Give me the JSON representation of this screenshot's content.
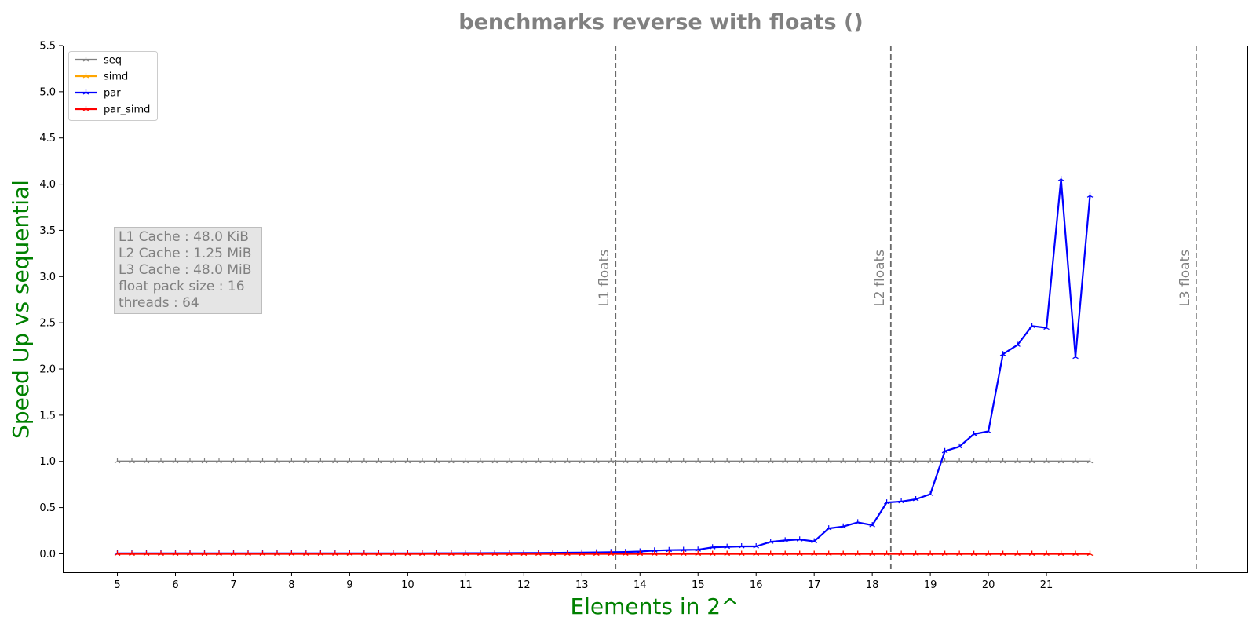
{
  "chart_data": {
    "type": "line",
    "title": "benchmarks reverse with floats  ()",
    "xlabel": "Elements in 2^",
    "ylabel": "Speed Up vs sequential",
    "xlim": [
      4.06,
      24.46
    ],
    "ylim": [
      -0.2,
      5.5
    ],
    "xticks": [
      5,
      6,
      7,
      8,
      9,
      10,
      11,
      12,
      13,
      14,
      15,
      16,
      17,
      18,
      19,
      20,
      21
    ],
    "yticks": [
      0.0,
      0.5,
      1.0,
      1.5,
      2.0,
      2.5,
      3.0,
      3.5,
      4.0,
      4.5,
      5.0,
      5.5
    ],
    "grid": false,
    "legend_position": "top-left",
    "x": [
      5,
      5.25,
      5.5,
      5.75,
      6,
      6.25,
      6.5,
      6.75,
      7,
      7.25,
      7.5,
      7.75,
      8,
      8.25,
      8.5,
      8.75,
      9,
      9.25,
      9.5,
      9.75,
      10,
      10.25,
      10.5,
      10.75,
      11,
      11.25,
      11.5,
      11.75,
      12,
      12.25,
      12.5,
      12.75,
      13,
      13.25,
      13.5,
      13.75,
      14,
      14.25,
      14.5,
      14.75,
      15,
      15.25,
      15.5,
      15.75,
      16,
      16.25,
      16.5,
      16.75,
      17,
      17.25,
      17.5,
      17.75,
      18,
      18.25,
      18.5,
      18.75,
      19,
      19.25,
      19.5,
      19.75,
      20,
      20.25,
      20.5,
      20.75,
      21,
      21.25,
      21.5,
      21.75
    ],
    "series": [
      {
        "name": "seq",
        "color": "#808080",
        "values": [
          1,
          1,
          1,
          1,
          1,
          1,
          1,
          1,
          1,
          1,
          1,
          1,
          1,
          1,
          1,
          1,
          1,
          1,
          1,
          1,
          1,
          1,
          1,
          1,
          1,
          1,
          1,
          1,
          1,
          1,
          1,
          1,
          1,
          1,
          1,
          1,
          1,
          1,
          1,
          1,
          1,
          1,
          1,
          1,
          1,
          1,
          1,
          1,
          1,
          1,
          1,
          1,
          1,
          1,
          1,
          1,
          1,
          1,
          1,
          1,
          1,
          1,
          1,
          1,
          1,
          1,
          1,
          1
        ]
      },
      {
        "name": "simd",
        "color": "#ffa500",
        "values": [
          0,
          0,
          0,
          0,
          0,
          0,
          0,
          0,
          0,
          0,
          0,
          0,
          0,
          0,
          0,
          0,
          0,
          0,
          0,
          0,
          0,
          0,
          0,
          0,
          0,
          0,
          0,
          0,
          0,
          0,
          0,
          0,
          0,
          0,
          0,
          0,
          0,
          0,
          0,
          0,
          0,
          0,
          0,
          0,
          0,
          0,
          0,
          0,
          0,
          0,
          0,
          0,
          0,
          0,
          0,
          0,
          0,
          0,
          0,
          0,
          0,
          0,
          0,
          0,
          0,
          0,
          0,
          0
        ]
      },
      {
        "name": "par",
        "color": "#0000ff",
        "values": [
          0.005,
          0.005,
          0.005,
          0.005,
          0.005,
          0.005,
          0.005,
          0.005,
          0.005,
          0.005,
          0.005,
          0.005,
          0.005,
          0.005,
          0.005,
          0.005,
          0.005,
          0.005,
          0.005,
          0.005,
          0.005,
          0.005,
          0.006,
          0.006,
          0.007,
          0.007,
          0.008,
          0.008,
          0.009,
          0.01,
          0.011,
          0.012,
          0.014,
          0.016,
          0.018,
          0.02,
          0.025,
          0.035,
          0.04,
          0.042,
          0.045,
          0.07,
          0.075,
          0.08,
          0.08,
          0.13,
          0.145,
          0.155,
          0.135,
          0.275,
          0.295,
          0.34,
          0.31,
          0.555,
          0.565,
          0.59,
          0.645,
          1.11,
          1.16,
          1.295,
          1.325,
          2.16,
          2.26,
          2.465,
          2.445,
          4.055,
          2.13,
          3.875
        ]
      },
      {
        "name": "par_simd",
        "color": "#ff0000",
        "values": [
          0,
          0,
          0,
          0,
          0,
          0,
          0,
          0,
          0,
          0,
          0,
          0,
          0,
          0,
          0,
          0,
          0,
          0,
          0,
          0,
          0,
          0,
          0,
          0,
          0,
          0,
          0,
          0,
          0,
          0,
          0,
          0,
          0,
          0,
          0,
          0,
          0,
          0,
          0,
          0,
          0,
          0,
          0,
          0,
          0,
          0,
          0,
          0,
          0,
          0,
          0,
          0,
          0,
          0,
          0,
          0,
          0,
          0,
          0,
          0,
          0,
          0,
          0,
          0,
          0,
          0,
          0,
          0
        ]
      }
    ],
    "vlines": [
      {
        "x": 13.58,
        "label": "L1 floats",
        "color": "#696969"
      },
      {
        "x": 18.32,
        "label": "L2 floats",
        "color": "#696969"
      },
      {
        "x": 23.58,
        "label": "L3 floats",
        "color": "#808080"
      }
    ],
    "annotation": {
      "lines": [
        "L1 Cache : 48.0 KiB",
        "L2 Cache : 1.25 MiB",
        "L3 Cache : 48.0 MiB",
        "float pack size : 16",
        "threads : 64"
      ]
    },
    "colors": {
      "title": "#808080",
      "axis_labels": "#008000",
      "annotation_text": "#808080"
    }
  }
}
